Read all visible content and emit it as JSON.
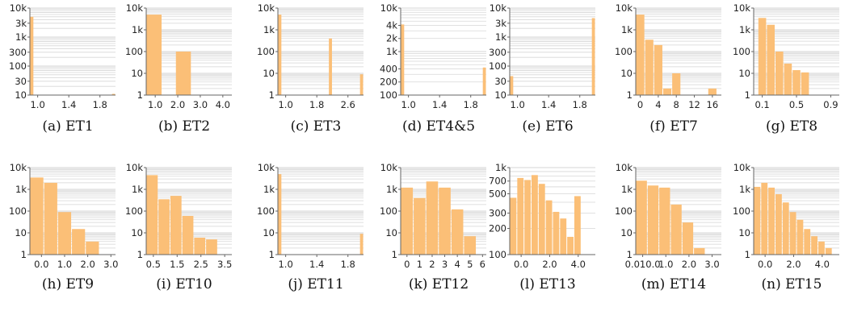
{
  "colors": {
    "bar": "#fbbf77",
    "gridline": "#d6d6d6",
    "axis": "#666666",
    "text": "#222222"
  },
  "chart_data": [
    {
      "caption": "(a) ET1",
      "type": "bar",
      "yscale": "log",
      "ylim": [
        10,
        10000
      ],
      "yticks": [
        {
          "v": 10,
          "label": "10"
        },
        {
          "v": 30,
          "label": "30"
        },
        {
          "v": 100,
          "label": "100"
        },
        {
          "v": 300,
          "label": "300"
        },
        {
          "v": 1000,
          "label": "1k"
        },
        {
          "v": 3000,
          "label": "3k"
        },
        {
          "v": 10000,
          "label": "10k"
        }
      ],
      "xlim": [
        0.9,
        2.0
      ],
      "xticks": [
        {
          "v": 1.0,
          "label": "1.0"
        },
        {
          "v": 1.4,
          "label": "1.4"
        },
        {
          "v": 1.8,
          "label": "1.8"
        }
      ],
      "bars": [
        {
          "x0": 0.9,
          "x1": 0.95,
          "v": 5000
        },
        {
          "x0": 1.95,
          "x1": 2.0,
          "v": 11
        }
      ]
    },
    {
      "caption": "(b) ET2",
      "type": "bar",
      "yscale": "log",
      "ylim": [
        1,
        10000
      ],
      "yticks": [
        {
          "v": 1,
          "label": "1"
        },
        {
          "v": 10,
          "label": "10"
        },
        {
          "v": 100,
          "label": "100"
        },
        {
          "v": 1000,
          "label": "1k"
        },
        {
          "v": 10000,
          "label": "10k"
        }
      ],
      "xlim": [
        0.6,
        4.4
      ],
      "xticks": [
        {
          "v": 1.0,
          "label": "1.0"
        },
        {
          "v": 2.0,
          "label": "2.0"
        },
        {
          "v": 3.0,
          "label": "3.0"
        },
        {
          "v": 4.0,
          "label": "4.0"
        }
      ],
      "bars": [
        {
          "x0": 0.6,
          "x1": 1.3,
          "v": 5000
        },
        {
          "x0": 1.9,
          "x1": 2.6,
          "v": 100
        }
      ]
    },
    {
      "caption": "(c) ET3",
      "type": "bar",
      "yscale": "log",
      "ylim": [
        1,
        10000
      ],
      "yticks": [
        {
          "v": 1,
          "label": "1"
        },
        {
          "v": 10,
          "label": "10"
        },
        {
          "v": 100,
          "label": "100"
        },
        {
          "v": 1000,
          "label": "1k"
        },
        {
          "v": 10000,
          "label": "10k"
        }
      ],
      "xlim": [
        0.8,
        3.0
      ],
      "xticks": [
        {
          "v": 1.0,
          "label": "1.0"
        },
        {
          "v": 1.8,
          "label": "1.8"
        },
        {
          "v": 2.6,
          "label": "2.6"
        }
      ],
      "bars": [
        {
          "x0": 0.8,
          "x1": 0.9,
          "v": 5000
        },
        {
          "x0": 2.1,
          "x1": 2.2,
          "v": 400
        },
        {
          "x0": 2.9,
          "x1": 3.0,
          "v": 9
        }
      ]
    },
    {
      "caption": "(d) ET4&5",
      "type": "bar",
      "yscale": "log",
      "ylim": [
        100,
        10000
      ],
      "yticks": [
        {
          "v": 100,
          "label": "100"
        },
        {
          "v": 200,
          "label": "200"
        },
        {
          "v": 400,
          "label": "400"
        },
        {
          "v": 1000,
          "label": "1k"
        },
        {
          "v": 2000,
          "label": "2k"
        },
        {
          "v": 4000,
          "label": "4k"
        },
        {
          "v": 10000,
          "label": "10k"
        }
      ],
      "xlim": [
        0.9,
        2.0
      ],
      "xticks": [
        {
          "v": 1.0,
          "label": "1.0"
        },
        {
          "v": 1.4,
          "label": "1.4"
        },
        {
          "v": 1.8,
          "label": "1.8"
        }
      ],
      "bars": [
        {
          "x0": 0.9,
          "x1": 0.95,
          "v": 4200
        },
        {
          "x0": 1.95,
          "x1": 2.0,
          "v": 430
        }
      ]
    },
    {
      "caption": "(e) ET6",
      "type": "bar",
      "yscale": "log",
      "ylim": [
        10,
        10000
      ],
      "yticks": [
        {
          "v": 10,
          "label": "10"
        },
        {
          "v": 30,
          "label": "30"
        },
        {
          "v": 100,
          "label": "100"
        },
        {
          "v": 300,
          "label": "300"
        },
        {
          "v": 1000,
          "label": "1k"
        },
        {
          "v": 3000,
          "label": "3k"
        },
        {
          "v": 10000,
          "label": "10k"
        }
      ],
      "xlim": [
        0.9,
        2.0
      ],
      "xticks": [
        {
          "v": 1.0,
          "label": "1.0"
        },
        {
          "v": 1.4,
          "label": "1.4"
        },
        {
          "v": 1.8,
          "label": "1.8"
        }
      ],
      "bars": [
        {
          "x0": 0.9,
          "x1": 0.95,
          "v": 45
        },
        {
          "x0": 1.95,
          "x1": 2.0,
          "v": 4500
        }
      ]
    },
    {
      "caption": "(f) ET7",
      "type": "bar",
      "yscale": "log",
      "ylim": [
        1,
        10000
      ],
      "yticks": [
        {
          "v": 1,
          "label": "1"
        },
        {
          "v": 10,
          "label": "10"
        },
        {
          "v": 100,
          "label": "100"
        },
        {
          "v": 1000,
          "label": "1k"
        },
        {
          "v": 10000,
          "label": "10k"
        }
      ],
      "xlim": [
        -1,
        18
      ],
      "xticks": [
        {
          "v": 0,
          "label": "0"
        },
        {
          "v": 4,
          "label": "4"
        },
        {
          "v": 8,
          "label": "8"
        },
        {
          "v": 12,
          "label": "12"
        },
        {
          "v": 16,
          "label": "16"
        }
      ],
      "bars": [
        {
          "x0": -1,
          "x1": 1,
          "v": 5000
        },
        {
          "x0": 1,
          "x1": 3,
          "v": 350
        },
        {
          "x0": 3,
          "x1": 5,
          "v": 200
        },
        {
          "x0": 5,
          "x1": 7,
          "v": 2
        },
        {
          "x0": 7,
          "x1": 9,
          "v": 10
        },
        {
          "x0": 15,
          "x1": 17,
          "v": 2
        }
      ]
    },
    {
      "caption": "(g) ET8",
      "type": "bar",
      "yscale": "log",
      "ylim": [
        1,
        10000
      ],
      "yticks": [
        {
          "v": 1,
          "label": "1"
        },
        {
          "v": 10,
          "label": "10"
        },
        {
          "v": 100,
          "label": "100"
        },
        {
          "v": 1000,
          "label": "1k"
        },
        {
          "v": 10000,
          "label": "10k"
        }
      ],
      "xlim": [
        0.0,
        1.0
      ],
      "xticks": [
        {
          "v": 0.1,
          "label": "0.1"
        },
        {
          "v": 0.5,
          "label": "0.5"
        },
        {
          "v": 0.9,
          "label": "0.9"
        }
      ],
      "bars": [
        {
          "x0": 0.05,
          "x1": 0.15,
          "v": 3500
        },
        {
          "x0": 0.15,
          "x1": 0.25,
          "v": 1700
        },
        {
          "x0": 0.25,
          "x1": 0.35,
          "v": 100
        },
        {
          "x0": 0.35,
          "x1": 0.45,
          "v": 28
        },
        {
          "x0": 0.45,
          "x1": 0.55,
          "v": 14
        },
        {
          "x0": 0.55,
          "x1": 0.65,
          "v": 11
        }
      ]
    },
    {
      "caption": "(h) ET9",
      "type": "bar",
      "yscale": "log",
      "ylim": [
        1,
        10000
      ],
      "yticks": [
        {
          "v": 1,
          "label": "1"
        },
        {
          "v": 10,
          "label": "10"
        },
        {
          "v": 100,
          "label": "100"
        },
        {
          "v": 1000,
          "label": "1k"
        },
        {
          "v": 10000,
          "label": "10k"
        }
      ],
      "xlim": [
        -0.5,
        3.2
      ],
      "xticks": [
        {
          "v": 0.0,
          "label": "0.0"
        },
        {
          "v": 1.0,
          "label": "1.0"
        },
        {
          "v": 2.0,
          "label": "2.0"
        },
        {
          "v": 3.0,
          "label": "3.0"
        }
      ],
      "bars": [
        {
          "x0": -0.5,
          "x1": 0.1,
          "v": 3500
        },
        {
          "x0": 0.1,
          "x1": 0.7,
          "v": 2000
        },
        {
          "x0": 0.7,
          "x1": 1.3,
          "v": 90
        },
        {
          "x0": 1.3,
          "x1": 1.9,
          "v": 15
        },
        {
          "x0": 1.9,
          "x1": 2.5,
          "v": 4
        }
      ]
    },
    {
      "caption": "(i) ET10",
      "type": "bar",
      "yscale": "log",
      "ylim": [
        1,
        10000
      ],
      "yticks": [
        {
          "v": 1,
          "label": "1"
        },
        {
          "v": 10,
          "label": "10"
        },
        {
          "v": 100,
          "label": "100"
        },
        {
          "v": 1000,
          "label": "1k"
        },
        {
          "v": 10000,
          "label": "10k"
        }
      ],
      "xlim": [
        0.2,
        3.8
      ],
      "xticks": [
        {
          "v": 0.5,
          "label": "0.5"
        },
        {
          "v": 1.5,
          "label": "1.5"
        },
        {
          "v": 2.5,
          "label": "2.5"
        },
        {
          "v": 3.5,
          "label": "3.5"
        }
      ],
      "bars": [
        {
          "x0": 0.2,
          "x1": 0.7,
          "v": 4500
        },
        {
          "x0": 0.7,
          "x1": 1.2,
          "v": 350
        },
        {
          "x0": 1.2,
          "x1": 1.7,
          "v": 500
        },
        {
          "x0": 1.7,
          "x1": 2.2,
          "v": 60
        },
        {
          "x0": 2.2,
          "x1": 2.7,
          "v": 6
        },
        {
          "x0": 2.7,
          "x1": 3.2,
          "v": 5
        }
      ]
    },
    {
      "caption": "(j) ET11",
      "type": "bar",
      "yscale": "log",
      "ylim": [
        1,
        10000
      ],
      "yticks": [
        {
          "v": 1,
          "label": "1"
        },
        {
          "v": 10,
          "label": "10"
        },
        {
          "v": 100,
          "label": "100"
        },
        {
          "v": 1000,
          "label": "1k"
        },
        {
          "v": 10000,
          "label": "10k"
        }
      ],
      "xlim": [
        0.9,
        2.0
      ],
      "xticks": [
        {
          "v": 1.0,
          "label": "1.0"
        },
        {
          "v": 1.4,
          "label": "1.4"
        },
        {
          "v": 1.8,
          "label": "1.8"
        }
      ],
      "bars": [
        {
          "x0": 0.9,
          "x1": 0.95,
          "v": 5000
        },
        {
          "x0": 1.95,
          "x1": 2.0,
          "v": 9
        }
      ]
    },
    {
      "caption": "(k) ET12",
      "type": "bar",
      "yscale": "log",
      "ylim": [
        1,
        10000
      ],
      "yticks": [
        {
          "v": 1,
          "label": "1"
        },
        {
          "v": 10,
          "label": "10"
        },
        {
          "v": 100,
          "label": "100"
        },
        {
          "v": 1000,
          "label": "1k"
        },
        {
          "v": 10000,
          "label": "10k"
        }
      ],
      "xlim": [
        -0.5,
        6.3
      ],
      "xticks": [
        {
          "v": 0,
          "label": "0"
        },
        {
          "v": 1,
          "label": "1"
        },
        {
          "v": 2,
          "label": "2"
        },
        {
          "v": 3,
          "label": "3"
        },
        {
          "v": 4,
          "label": "4"
        },
        {
          "v": 5,
          "label": "5"
        },
        {
          "v": 6,
          "label": "6"
        }
      ],
      "bars": [
        {
          "x0": -0.5,
          "x1": 0.5,
          "v": 1200
        },
        {
          "x0": 0.5,
          "x1": 1.5,
          "v": 400
        },
        {
          "x0": 1.5,
          "x1": 2.5,
          "v": 2300
        },
        {
          "x0": 2.5,
          "x1": 3.5,
          "v": 1200
        },
        {
          "x0": 3.5,
          "x1": 4.5,
          "v": 120
        },
        {
          "x0": 4.5,
          "x1": 5.5,
          "v": 7
        }
      ]
    },
    {
      "caption": "(l) ET13",
      "type": "bar",
      "yscale": "log",
      "ylim": [
        100,
        1000
      ],
      "yticks": [
        {
          "v": 100,
          "label": "100"
        },
        {
          "v": 200,
          "label": "200"
        },
        {
          "v": 300,
          "label": "300"
        },
        {
          "v": 500,
          "label": "500"
        },
        {
          "v": 700,
          "label": "700"
        },
        {
          "v": 1000,
          "label": "1k"
        }
      ],
      "xlim": [
        -0.8,
        5.2
      ],
      "xticks": [
        {
          "v": 0.0,
          "label": "0.0"
        },
        {
          "v": 2.0,
          "label": "2.0"
        },
        {
          "v": 4.0,
          "label": "4.0"
        }
      ],
      "bars": [
        {
          "x0": -0.8,
          "x1": -0.3,
          "v": 450
        },
        {
          "x0": -0.3,
          "x1": 0.2,
          "v": 760
        },
        {
          "x0": 0.2,
          "x1": 0.7,
          "v": 720
        },
        {
          "x0": 0.7,
          "x1": 1.2,
          "v": 820
        },
        {
          "x0": 1.2,
          "x1": 1.7,
          "v": 650
        },
        {
          "x0": 1.7,
          "x1": 2.2,
          "v": 420
        },
        {
          "x0": 2.2,
          "x1": 2.7,
          "v": 310
        },
        {
          "x0": 2.7,
          "x1": 3.2,
          "v": 260
        },
        {
          "x0": 3.2,
          "x1": 3.7,
          "v": 160
        },
        {
          "x0": 3.7,
          "x1": 4.2,
          "v": 470
        }
      ]
    },
    {
      "caption": "(m) ET14",
      "type": "bar",
      "yscale": "log",
      "ylim": [
        1,
        10000
      ],
      "yticks": [
        {
          "v": 1,
          "label": "1"
        },
        {
          "v": 10,
          "label": "10"
        },
        {
          "v": 100,
          "label": "100"
        },
        {
          "v": 1000,
          "label": "1k"
        },
        {
          "v": 10000,
          "label": "10k"
        }
      ],
      "xlim": [
        -0.3,
        3.4
      ],
      "xticks": [
        {
          "v": 0.0,
          "label": "0.0"
        },
        {
          "v": 1.0,
          "label": "1.0"
        },
        {
          "v": 2.0,
          "label": "2.0"
        },
        {
          "v": 3.0,
          "label": "3.0"
        }
      ],
      "xtick_prefix": "0.01",
      "bars": [
        {
          "x0": -0.3,
          "x1": 0.2,
          "v": 2500
        },
        {
          "x0": 0.2,
          "x1": 0.7,
          "v": 1500
        },
        {
          "x0": 0.7,
          "x1": 1.2,
          "v": 1200
        },
        {
          "x0": 1.2,
          "x1": 1.7,
          "v": 200
        },
        {
          "x0": 1.7,
          "x1": 2.2,
          "v": 30
        },
        {
          "x0": 2.2,
          "x1": 2.7,
          "v": 2
        }
      ]
    },
    {
      "caption": "(n) ET15",
      "type": "bar",
      "yscale": "log",
      "ylim": [
        1,
        10000
      ],
      "yticks": [
        {
          "v": 1,
          "label": "1"
        },
        {
          "v": 10,
          "label": "10"
        },
        {
          "v": 100,
          "label": "100"
        },
        {
          "v": 1000,
          "label": "1k"
        },
        {
          "v": 10000,
          "label": "10k"
        }
      ],
      "xlim": [
        -0.8,
        5.2
      ],
      "xticks": [
        {
          "v": 0.0,
          "label": "0.0"
        },
        {
          "v": 2.0,
          "label": "2.0"
        },
        {
          "v": 4.0,
          "label": "4.0"
        }
      ],
      "bars": [
        {
          "x0": -0.8,
          "x1": -0.3,
          "v": 1300
        },
        {
          "x0": -0.3,
          "x1": 0.2,
          "v": 2000
        },
        {
          "x0": 0.2,
          "x1": 0.7,
          "v": 1200
        },
        {
          "x0": 0.7,
          "x1": 1.2,
          "v": 600
        },
        {
          "x0": 1.2,
          "x1": 1.7,
          "v": 250
        },
        {
          "x0": 1.7,
          "x1": 2.2,
          "v": 90
        },
        {
          "x0": 2.2,
          "x1": 2.7,
          "v": 40
        },
        {
          "x0": 2.7,
          "x1": 3.2,
          "v": 15
        },
        {
          "x0": 3.2,
          "x1": 3.7,
          "v": 7
        },
        {
          "x0": 3.7,
          "x1": 4.2,
          "v": 4
        },
        {
          "x0": 4.2,
          "x1": 4.7,
          "v": 2
        }
      ]
    }
  ]
}
